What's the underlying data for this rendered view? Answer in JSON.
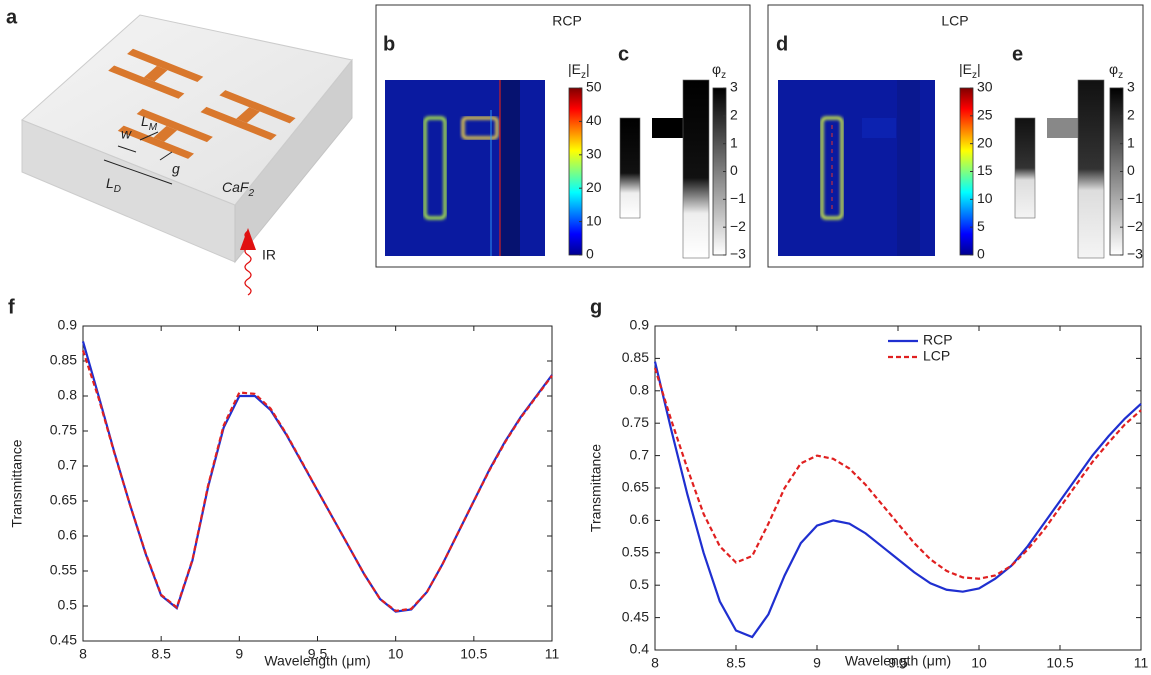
{
  "schematic": {
    "panel": "a",
    "dims": [
      {
        "text": "w"
      },
      {
        "text": "L",
        "sub": "M"
      },
      {
        "text": "g"
      },
      {
        "text": "L",
        "sub": "D"
      }
    ],
    "substrate": {
      "text": "CaF",
      "sub": "2"
    },
    "beam": "IR"
  },
  "field_maps": [
    {
      "title": "RCP",
      "maps": [
        {
          "panel": "b",
          "colorbar": {
            "label": {
              "text": "|E",
              "sub": "z",
              "tail": "|"
            },
            "lim": [
              0,
              50
            ],
            "ticks": [
              0,
              10,
              20,
              30,
              40,
              50
            ]
          }
        },
        {
          "panel": "c",
          "colorbar": {
            "label": {
              "text": "φ",
              "sub": "z"
            },
            "lim": [
              -3,
              3
            ],
            "ticks": [
              {
                "value": -3,
                "label": "−3"
              },
              {
                "value": -2,
                "label": "−2"
              },
              {
                "value": -1,
                "label": "−1"
              },
              0,
              1,
              2,
              3
            ]
          }
        }
      ]
    },
    {
      "title": "LCP",
      "maps": [
        {
          "panel": "d",
          "colorbar": {
            "label": {
              "text": "|E",
              "sub": "z",
              "tail": "|"
            },
            "lim": [
              0,
              30
            ],
            "ticks": [
              0,
              5,
              10,
              15,
              20,
              25,
              30
            ]
          }
        },
        {
          "panel": "e",
          "colorbar": {
            "label": {
              "text": "φ",
              "sub": "z"
            },
            "lim": [
              -3,
              3
            ],
            "ticks": [
              {
                "value": -3,
                "label": "−3"
              },
              {
                "value": -2,
                "label": "−2"
              },
              {
                "value": -1,
                "label": "−1"
              },
              0,
              1,
              2,
              3
            ]
          }
        }
      ]
    }
  ],
  "chart_data": [
    {
      "type": "line",
      "panel": "f",
      "xlabel": "Wavelength (μm)",
      "ylabel": "Transmittance",
      "x": [
        8.0,
        8.1,
        8.2,
        8.3,
        8.4,
        8.5,
        8.6,
        8.7,
        8.8,
        8.9,
        9.0,
        9.1,
        9.2,
        9.3,
        9.4,
        9.5,
        9.6,
        9.7,
        9.8,
        9.9,
        10.0,
        10.1,
        10.2,
        10.3,
        10.4,
        10.5,
        10.6,
        10.7,
        10.8,
        10.9,
        11.0
      ],
      "series": [
        {
          "color": "#1f2fd0",
          "style": "solid",
          "values": [
            0.878,
            0.8,
            0.72,
            0.645,
            0.575,
            0.515,
            0.497,
            0.565,
            0.67,
            0.755,
            0.8,
            0.8,
            0.78,
            0.745,
            0.705,
            0.665,
            0.625,
            0.585,
            0.545,
            0.51,
            0.492,
            0.495,
            0.52,
            0.56,
            0.605,
            0.65,
            0.695,
            0.735,
            0.77,
            0.8,
            0.83
          ]
        },
        {
          "color": "#e02020",
          "style": "dashed",
          "values": [
            0.865,
            0.797,
            0.719,
            0.645,
            0.576,
            0.516,
            0.498,
            0.566,
            0.672,
            0.758,
            0.805,
            0.803,
            0.782,
            0.746,
            0.706,
            0.665,
            0.625,
            0.585,
            0.545,
            0.51,
            0.493,
            0.496,
            0.52,
            0.56,
            0.605,
            0.65,
            0.694,
            0.734,
            0.769,
            0.799,
            0.829
          ]
        }
      ],
      "xlim": [
        8,
        11
      ],
      "ylim": [
        0.45,
        0.9
      ],
      "xticks": [
        8,
        8.5,
        9,
        9.5,
        10,
        10.5,
        11
      ],
      "yticks": [
        0.45,
        0.5,
        0.55,
        0.6,
        0.65,
        0.7,
        0.75,
        0.8,
        0.85,
        0.9
      ]
    },
    {
      "type": "line",
      "panel": "g",
      "xlabel": "Wavelength (μm)",
      "ylabel": "Transmittance",
      "legend": "upper-center",
      "x": [
        8.0,
        8.1,
        8.2,
        8.3,
        8.4,
        8.5,
        8.6,
        8.7,
        8.8,
        8.9,
        9.0,
        9.1,
        9.2,
        9.3,
        9.4,
        9.5,
        9.6,
        9.7,
        9.8,
        9.9,
        10.0,
        10.1,
        10.2,
        10.3,
        10.4,
        10.5,
        10.6,
        10.7,
        10.8,
        10.9,
        11.0
      ],
      "series": [
        {
          "name": "RCP",
          "color": "#1f2fd0",
          "style": "solid",
          "values": [
            0.845,
            0.74,
            0.64,
            0.55,
            0.475,
            0.43,
            0.42,
            0.455,
            0.515,
            0.565,
            0.592,
            0.6,
            0.595,
            0.58,
            0.56,
            0.54,
            0.52,
            0.503,
            0.493,
            0.49,
            0.495,
            0.51,
            0.53,
            0.56,
            0.595,
            0.63,
            0.665,
            0.7,
            0.73,
            0.757,
            0.78
          ]
        },
        {
          "name": "LCP",
          "color": "#e02020",
          "style": "dashed",
          "values": [
            0.835,
            0.755,
            0.68,
            0.61,
            0.56,
            0.535,
            0.545,
            0.595,
            0.65,
            0.688,
            0.7,
            0.695,
            0.68,
            0.655,
            0.625,
            0.595,
            0.565,
            0.54,
            0.522,
            0.512,
            0.51,
            0.515,
            0.53,
            0.555,
            0.585,
            0.62,
            0.655,
            0.69,
            0.72,
            0.748,
            0.77
          ]
        }
      ],
      "xlim": [
        8,
        11
      ],
      "ylim": [
        0.4,
        0.9
      ],
      "xticks": [
        8,
        8.5,
        9,
        9.5,
        10,
        10.5,
        11
      ],
      "yticks": [
        0.4,
        0.45,
        0.5,
        0.55,
        0.6,
        0.65,
        0.7,
        0.75,
        0.8,
        0.85,
        0.9
      ]
    }
  ]
}
